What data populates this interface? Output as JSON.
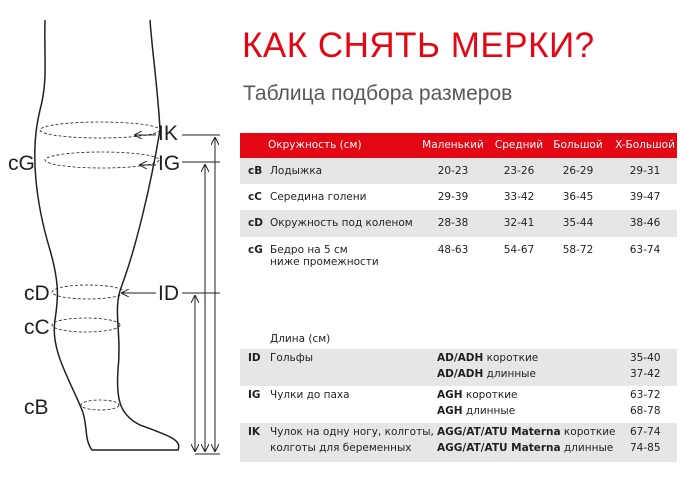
{
  "title": "КАК СНЯТЬ МЕРКИ?",
  "subtitle": "Таблица подбора размеров",
  "colors": {
    "accent": "#e30613",
    "row_gray": "#e6e6e8"
  },
  "diagram_labels": {
    "IK": "IK",
    "IG": "IG",
    "cG": "cG",
    "cD": "cD",
    "ID": "ID",
    "cC": "cC",
    "cB": "cB"
  },
  "circumference": {
    "header": [
      "Окружность (см)",
      "Маленький",
      "Средний",
      "Большой",
      "X-Большой"
    ],
    "rows": [
      {
        "code": "cB",
        "label": "Лодыжка",
        "values": [
          "20-23",
          "23-26",
          "26-29",
          "29-31"
        ]
      },
      {
        "code": "cC",
        "label": "Середина голени",
        "values": [
          "29-39",
          "33-42",
          "36-45",
          "39-47"
        ]
      },
      {
        "code": "cD",
        "label": "Окружность под коленом",
        "values": [
          "28-38",
          "32-41",
          "35-44",
          "38-46"
        ]
      },
      {
        "code": "cG",
        "label": "Бедро на 5 см",
        "label2": "ниже промежности",
        "values": [
          "48-63",
          "54-67",
          "58-72",
          "63-74"
        ]
      }
    ]
  },
  "length": {
    "header": "Длина (см)",
    "rows": [
      {
        "code": "ID",
        "label": "Гольфы",
        "label2": "",
        "items": [
          {
            "model": "AD/ADH",
            "type": "короткие",
            "value": "35-40"
          },
          {
            "model": "AD/ADH",
            "type": "длинные",
            "value": "37-42"
          }
        ]
      },
      {
        "code": "IG",
        "label": "Чулки до паха",
        "label2": "",
        "items": [
          {
            "model": "AGH",
            "type": "короткие",
            "value": "63-72"
          },
          {
            "model": "AGH",
            "type": "длинные",
            "value": "68-78"
          }
        ]
      },
      {
        "code": "IK",
        "label": "Чулок на одну ногу, колготы,",
        "label2": "колготы для беременных",
        "items": [
          {
            "model": "AGG/AT/ATU Materna",
            "type": "короткие",
            "value": "67-74"
          },
          {
            "model": "AGG/AT/ATU Materna",
            "type": "длинные",
            "value": "74-85"
          }
        ]
      }
    ]
  }
}
